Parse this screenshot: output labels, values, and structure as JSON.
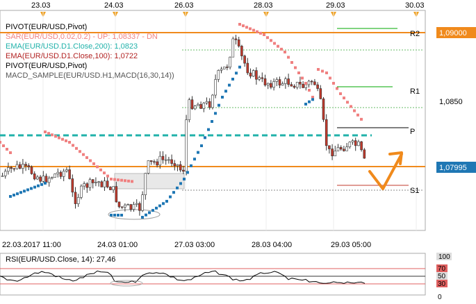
{
  "top_dates": [
    "23.03",
    "24.03",
    "26.03",
    "28.03",
    "29.03",
    "30.03"
  ],
  "bottom_dates": [
    "22.03.2017 11:00",
    "24.03 01:00",
    "27.03 03:00",
    "28.03 04:00",
    "29.03 05:00"
  ],
  "legend": [
    {
      "text": "PIVOT(EUR/USD,Pivot)",
      "color": "#000000"
    },
    {
      "text": "SAR(EUR/USD,0.02,0.2) - UP: 1,08337 - DN",
      "color": "#f08080"
    },
    {
      "text": "EMA(EUR/USD.D1.Close,200): 1,0823",
      "color": "#20b2aa"
    },
    {
      "text": "EMA(EUR/USD.D1.Close,100): 1,0722",
      "color": "#b22222"
    },
    {
      "text": "PIVOT(EUR/USD,Pivot)",
      "color": "#000000"
    },
    {
      "text": "MACD_SAMPLE(EUR/USD.H1,MACD(16,30,14))",
      "color": "#555555"
    }
  ],
  "pivot_labels": {
    "r2": "R2",
    "r1": "R1",
    "p": "P",
    "s1": "S1"
  },
  "price_axis": {
    "r2_price": "1,09000",
    "mid_price": "1,0850",
    "current_price": "1,07995"
  },
  "rsi": {
    "title": "RSI(EUR/USD.Close, 14): 27,46",
    "levels": [
      "100",
      "70",
      "50",
      "30",
      "0"
    ]
  },
  "colors": {
    "orange": "#f08a1c",
    "sar_up": "#f08080",
    "sar_dn": "#1f77b4",
    "ema200": "#20b2aa",
    "candle_up": "#ffffff",
    "candle_down": "#c0392b",
    "grid": "#e6e6e6",
    "green": "#00aa00"
  }
}
